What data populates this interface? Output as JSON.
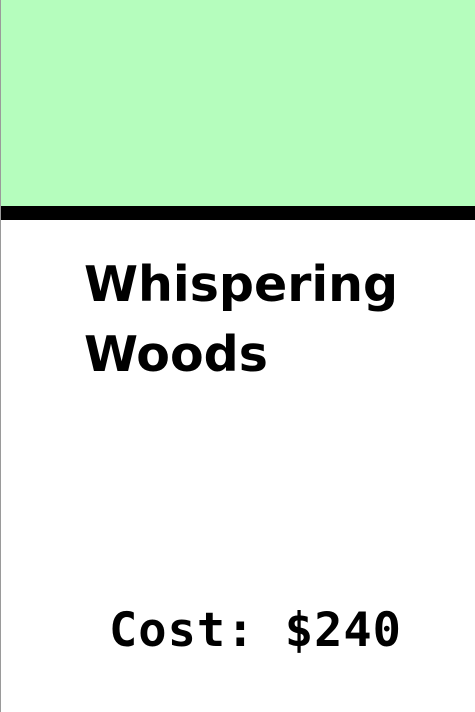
{
  "card": {
    "color": "#b5fdbd",
    "title_line1": "Whispering",
    "title_line2": "Woods",
    "cost_text": "Cost: $240",
    "cost_value": 240
  }
}
